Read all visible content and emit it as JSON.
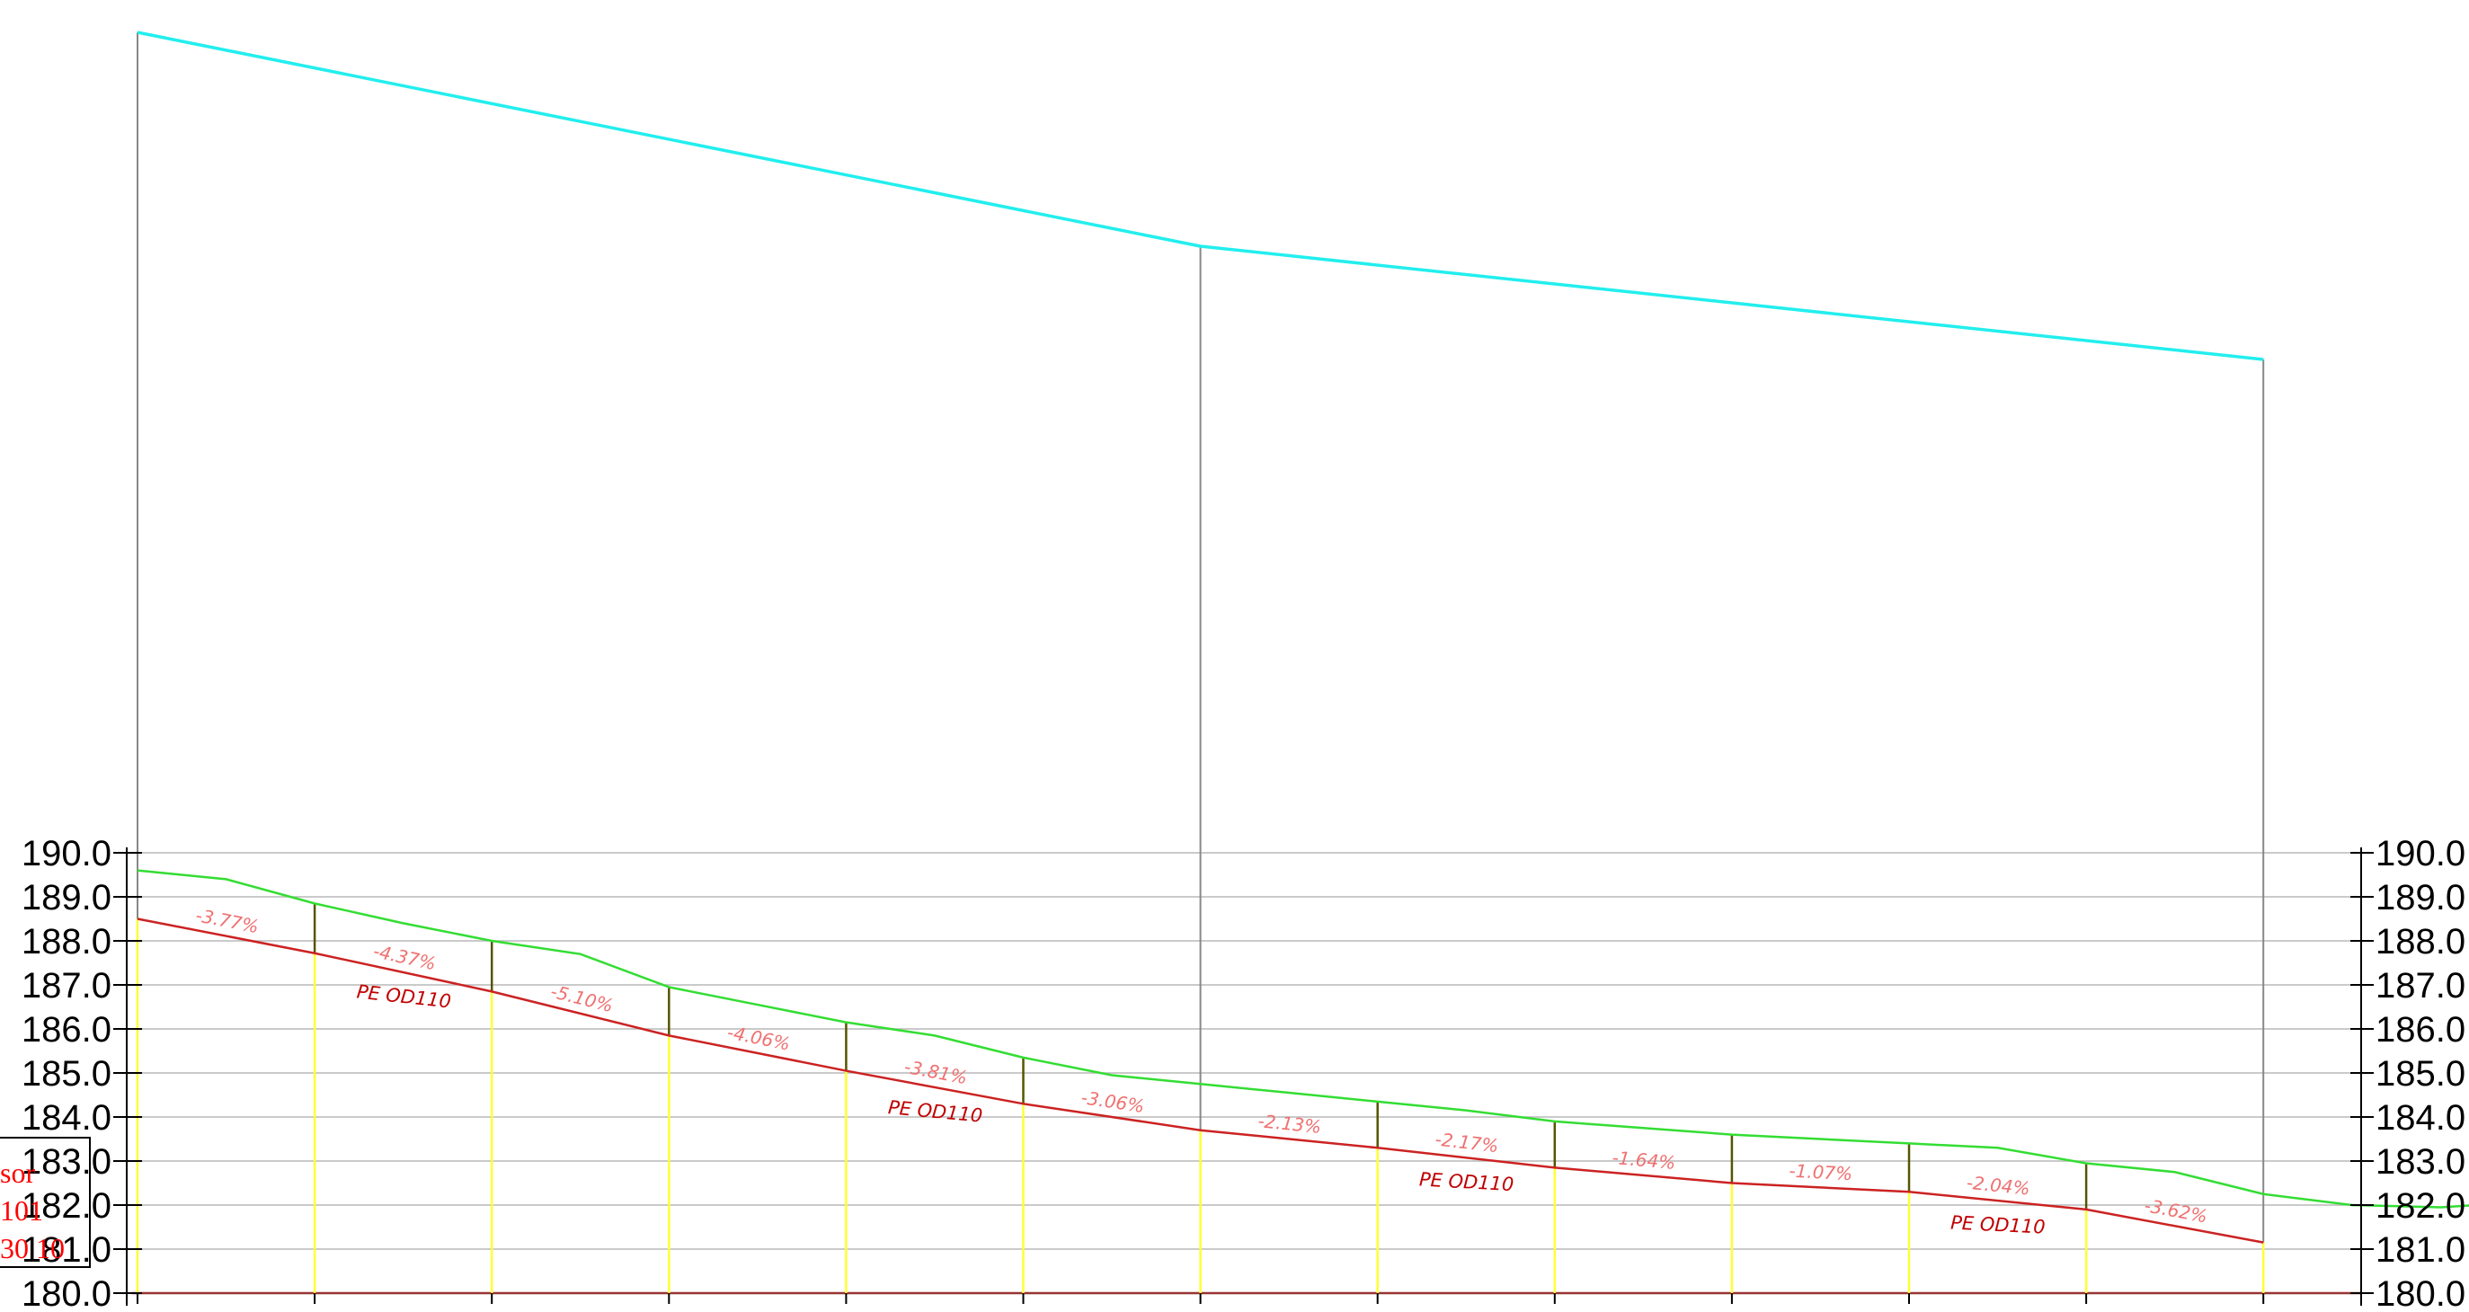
{
  "elevation_axis": {
    "labels": [
      "190.0",
      "189.0",
      "188.0",
      "187.0",
      "186.0",
      "185.0",
      "184.0",
      "183.0",
      "182.0",
      "181.0",
      "180.0"
    ],
    "values": [
      190,
      189,
      188,
      187,
      186,
      185,
      184,
      183,
      182,
      181,
      180
    ],
    "min": 180,
    "max": 190
  },
  "ground_profile": {
    "color": "#33dd33",
    "x": [
      0,
      0.5,
      1,
      1.5,
      2,
      2.5,
      3,
      3.5,
      4,
      4.5,
      5,
      5.5,
      6,
      6.5,
      7,
      7.5,
      8,
      8.5,
      9,
      9.5,
      10,
      10.5,
      11,
      11.5,
      12,
      12.5,
      13,
      13.2
    ],
    "elevations": [
      189.6,
      189.4,
      188.85,
      188.4,
      188.0,
      187.7,
      186.95,
      186.55,
      186.15,
      185.85,
      185.35,
      184.95,
      184.75,
      184.55,
      184.35,
      184.15,
      183.9,
      183.75,
      183.6,
      183.5,
      183.4,
      183.3,
      182.95,
      182.75,
      182.25,
      182.0,
      181.95,
      182.0
    ]
  },
  "pipe_profile": {
    "color": "#cc2222",
    "x": [
      0,
      1,
      2,
      3,
      4,
      5,
      6,
      7,
      8,
      9,
      10,
      11,
      12
    ],
    "elevations": [
      188.5,
      187.72,
      186.85,
      185.85,
      185.05,
      184.3,
      183.7,
      183.3,
      182.85,
      182.5,
      182.3,
      181.9,
      181.15
    ],
    "slopes": [
      "-3.77%",
      "-4.37%",
      "-5.10%",
      "-4.06%",
      "-3.81%",
      "-3.06%",
      "-2.13%",
      "-2.17%",
      "-1.64%",
      "-1.07%",
      "-2.04%",
      "-3.62%"
    ],
    "pipe_labels": [
      "PE OD110",
      "PE OD110",
      "PE OD110",
      "PE OD110"
    ]
  },
  "upper_line": {
    "color": "#22eeee",
    "x": [
      0,
      6,
      12
    ]
  },
  "legend_fragment": {
    "lines": [
      "sor",
      "101",
      "30 10"
    ]
  },
  "colors": {
    "station_line": "#ffff33",
    "grid": "#b8b8b8",
    "structure": "#888888",
    "dark_tick": "#555500"
  }
}
